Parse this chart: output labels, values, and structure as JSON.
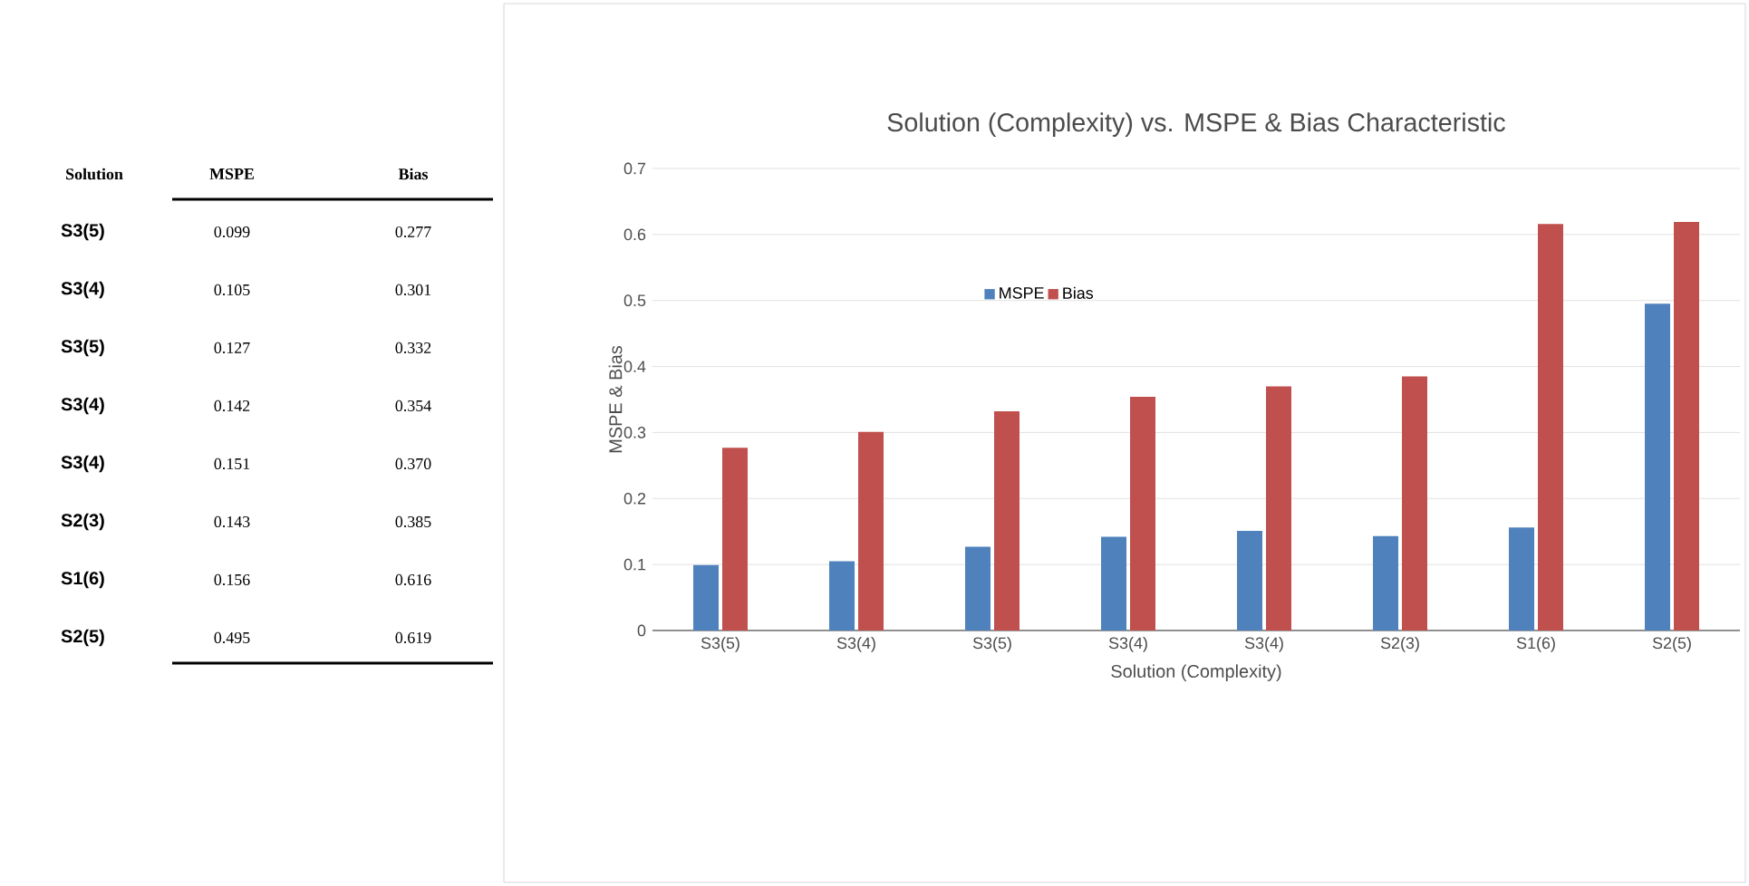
{
  "chart_data": [
    {
      "type": "other",
      "annotations": [
        "Solution"
      ],
      "categories": [
        "S3(5)",
        "S3(4)",
        "S3(5)",
        "S3(4)",
        "S3(4)",
        "S2(3)",
        "S1(6)",
        "S2(5)"
      ],
      "series": [
        {
          "name": "MSPE",
          "values": [
            0.099,
            0.105,
            0.127,
            0.142,
            0.151,
            0.143,
            0.156,
            0.495
          ],
          "value_labels": [
            "0.099",
            "0.105",
            "0.127",
            "0.142",
            "0.151",
            "0.143",
            "0.156",
            "0.495"
          ]
        },
        {
          "name": "Bias",
          "values": [
            0.277,
            0.301,
            0.332,
            0.354,
            0.37,
            0.385,
            0.616,
            0.619
          ],
          "value_labels": [
            "0.277",
            "0.301",
            "0.332",
            "0.354",
            "0.370",
            "0.385",
            "0.616",
            "0.619"
          ]
        }
      ]
    },
    {
      "type": "bar",
      "title": "Solution (Complexity) vs. MSPE & Bias Characteristic",
      "xlabel": "Solution (Complexity)",
      "ylabel": "MSPE & Bias",
      "categories": [
        "S3(5)",
        "S3(4)",
        "S3(5)",
        "S3(4)",
        "S3(4)",
        "S2(3)",
        "S1(6)",
        "S2(5)"
      ],
      "series": [
        {
          "name": "MSPE",
          "color": "#4f81bd",
          "values": [
            0.099,
            0.105,
            0.127,
            0.142,
            0.151,
            0.143,
            0.156,
            0.495
          ]
        },
        {
          "name": "Bias",
          "color": "#c0504d",
          "values": [
            0.277,
            0.301,
            0.332,
            0.354,
            0.37,
            0.385,
            0.616,
            0.619
          ]
        }
      ],
      "ylim": [
        0,
        0.7
      ],
      "yticks": [
        0,
        0.1,
        0.2,
        0.3,
        0.4,
        0.5,
        0.6,
        0.7
      ],
      "grid": "y",
      "legend": "top left"
    }
  ]
}
